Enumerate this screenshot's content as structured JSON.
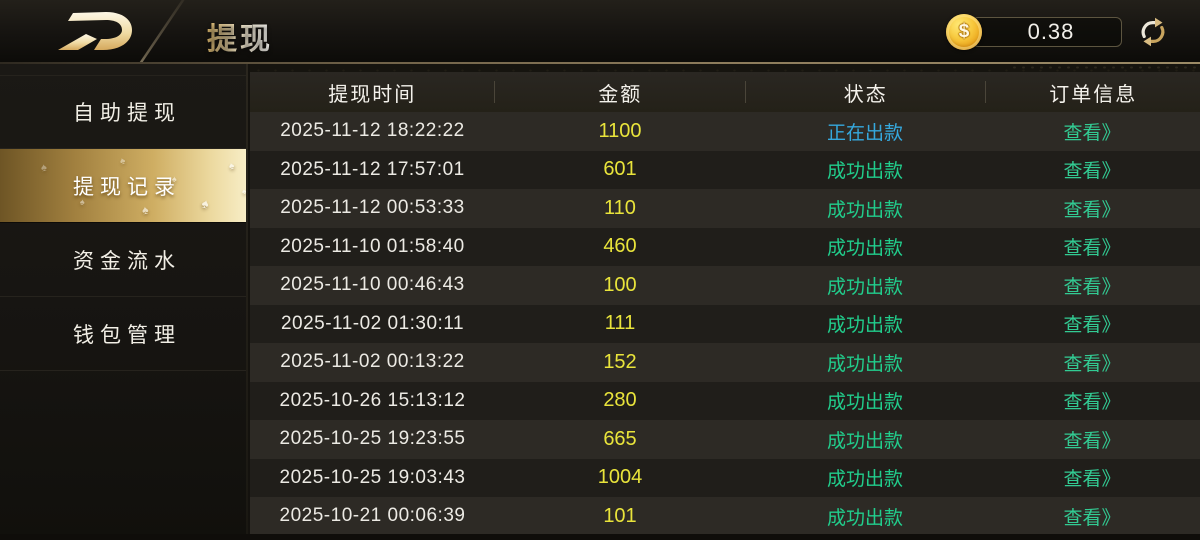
{
  "header": {
    "title": "提现",
    "balance": "0.38",
    "coin_symbol": "$"
  },
  "sidebar": {
    "items": [
      {
        "label": "自助提现",
        "active": false
      },
      {
        "label": "提现记录",
        "active": true
      },
      {
        "label": "资金流水",
        "active": false
      },
      {
        "label": "钱包管理",
        "active": false
      }
    ]
  },
  "table": {
    "columns": [
      "提现时间",
      "金额",
      "状态",
      "订单信息"
    ],
    "action_label": "查看》",
    "rows": [
      {
        "time": "2025-11-12 18:22:22",
        "amount": "1100",
        "status": "正在出款",
        "status_type": "processing"
      },
      {
        "time": "2025-11-12 17:57:01",
        "amount": "601",
        "status": "成功出款",
        "status_type": "success"
      },
      {
        "time": "2025-11-12 00:53:33",
        "amount": "110",
        "status": "成功出款",
        "status_type": "success"
      },
      {
        "time": "2025-11-10 01:58:40",
        "amount": "460",
        "status": "成功出款",
        "status_type": "success"
      },
      {
        "time": "2025-11-10 00:46:43",
        "amount": "100",
        "status": "成功出款",
        "status_type": "success"
      },
      {
        "time": "2025-11-02 01:30:11",
        "amount": "111",
        "status": "成功出款",
        "status_type": "success"
      },
      {
        "time": "2025-11-02 00:13:22",
        "amount": "152",
        "status": "成功出款",
        "status_type": "success"
      },
      {
        "time": "2025-10-26 15:13:12",
        "amount": "280",
        "status": "成功出款",
        "status_type": "success"
      },
      {
        "time": "2025-10-25 19:23:55",
        "amount": "665",
        "status": "成功出款",
        "status_type": "success"
      },
      {
        "time": "2025-10-25 19:03:43",
        "amount": "1004",
        "status": "成功出款",
        "status_type": "success"
      },
      {
        "time": "2025-10-21 00:06:39",
        "amount": "101",
        "status": "成功出款",
        "status_type": "success"
      }
    ],
    "colors": {
      "amount": "#e9e43b",
      "processing": "#35a8dd",
      "success": "#21cd8c",
      "link": "#32cb93",
      "gold": "#d9b465"
    }
  }
}
